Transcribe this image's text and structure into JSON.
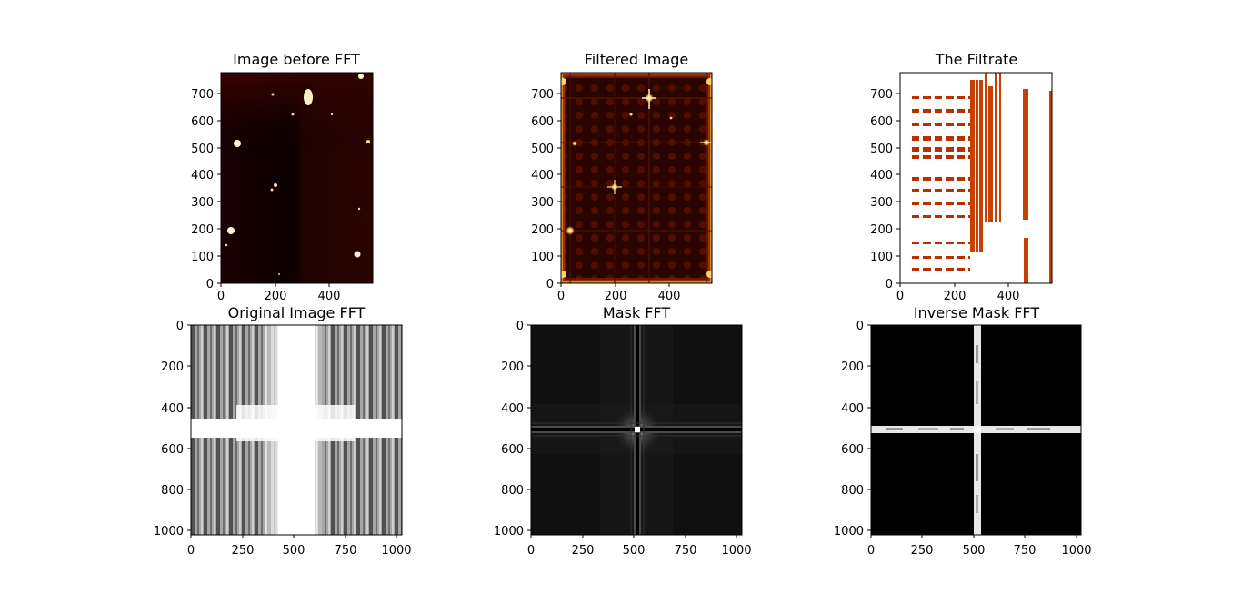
{
  "chart_data": [
    {
      "type": "heatmap",
      "title": "Image before FFT",
      "colormap": "afmhot",
      "xlim": [
        0,
        560
      ],
      "ylim": [
        0,
        780
      ],
      "y_origin": "lower",
      "xticks": [
        0,
        200,
        400
      ],
      "yticks": [
        0,
        100,
        200,
        300,
        400,
        500,
        600,
        700
      ]
    },
    {
      "type": "heatmap",
      "title": "Filtered Image",
      "colormap": "afmhot",
      "xlim": [
        0,
        560
      ],
      "ylim": [
        0,
        780
      ],
      "y_origin": "lower",
      "xticks": [
        0,
        200,
        400
      ],
      "yticks": [
        0,
        100,
        200,
        300,
        400,
        500,
        600,
        700
      ]
    },
    {
      "type": "heatmap",
      "title": "The Filtrate",
      "colormap": "afmhot",
      "xlim": [
        0,
        560
      ],
      "ylim": [
        0,
        780
      ],
      "y_origin": "lower",
      "xticks": [
        0,
        200,
        400
      ],
      "yticks": [
        0,
        100,
        200,
        300,
        400,
        500,
        600,
        700
      ]
    },
    {
      "type": "heatmap",
      "title": "Original Image FFT",
      "colormap": "gray",
      "xlim": [
        0,
        1024
      ],
      "ylim": [
        1024,
        0
      ],
      "y_origin": "upper",
      "xticks": [
        0,
        250,
        500,
        750,
        1000
      ],
      "yticks": [
        0,
        200,
        400,
        600,
        800,
        1000
      ]
    },
    {
      "type": "heatmap",
      "title": "Mask FFT",
      "colormap": "gray",
      "xlim": [
        0,
        1024
      ],
      "ylim": [
        1024,
        0
      ],
      "y_origin": "upper",
      "xticks": [
        0,
        250,
        500,
        750,
        1000
      ],
      "yticks": [
        0,
        200,
        400,
        600,
        800,
        1000
      ]
    },
    {
      "type": "heatmap",
      "title": "Inverse Mask FFT",
      "colormap": "gray",
      "xlim": [
        0,
        1024
      ],
      "ylim": [
        1024,
        0
      ],
      "y_origin": "upper",
      "xticks": [
        0,
        250,
        500,
        750,
        1000
      ],
      "yticks": [
        0,
        200,
        400,
        600,
        800,
        1000
      ]
    }
  ]
}
